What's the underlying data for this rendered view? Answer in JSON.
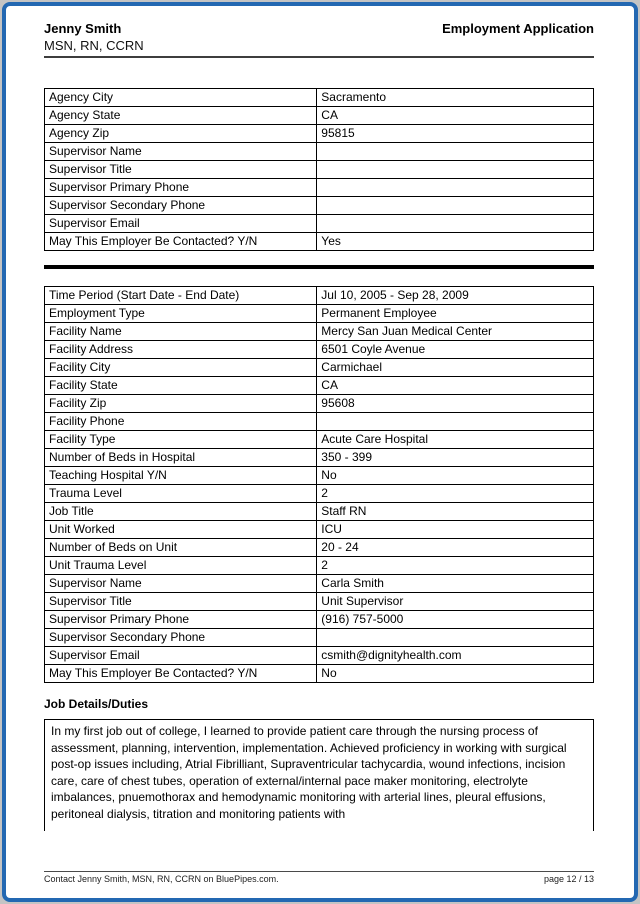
{
  "header": {
    "name": "Jenny Smith",
    "credentials": "MSN, RN, CCRN",
    "document_title": "Employment Application"
  },
  "agency_table": {
    "rows": [
      {
        "label": "Agency City",
        "value": "Sacramento"
      },
      {
        "label": "Agency State",
        "value": "CA"
      },
      {
        "label": "Agency Zip",
        "value": "95815"
      },
      {
        "label": "Supervisor Name",
        "value": ""
      },
      {
        "label": "Supervisor Title",
        "value": ""
      },
      {
        "label": "Supervisor Primary Phone",
        "value": ""
      },
      {
        "label": "Supervisor Secondary Phone",
        "value": ""
      },
      {
        "label": "Supervisor Email",
        "value": ""
      },
      {
        "label": "May This Employer Be Contacted? Y/N",
        "value": "Yes"
      }
    ]
  },
  "employment_table": {
    "rows": [
      {
        "label": "Time Period (Start Date - End Date)",
        "value": "Jul 10, 2005 - Sep 28, 2009"
      },
      {
        "label": "Employment Type",
        "value": "Permanent Employee"
      },
      {
        "label": "Facility Name",
        "value": "Mercy San Juan Medical Center"
      },
      {
        "label": "Facility Address",
        "value": "6501 Coyle Avenue"
      },
      {
        "label": "Facility City",
        "value": "Carmichael"
      },
      {
        "label": "Facility State",
        "value": "CA"
      },
      {
        "label": "Facility Zip",
        "value": "95608"
      },
      {
        "label": "Facility Phone",
        "value": ""
      },
      {
        "label": "Facility Type",
        "value": "Acute Care Hospital"
      },
      {
        "label": "Number of Beds in Hospital",
        "value": "350 - 399"
      },
      {
        "label": "Teaching Hospital Y/N",
        "value": "No"
      },
      {
        "label": "Trauma Level",
        "value": "2"
      },
      {
        "label": "Job Title",
        "value": "Staff RN"
      },
      {
        "label": "Unit Worked",
        "value": "ICU"
      },
      {
        "label": "Number of Beds on Unit",
        "value": "20 - 24"
      },
      {
        "label": "Unit Trauma Level",
        "value": "2"
      },
      {
        "label": "Supervisor Name",
        "value": "Carla Smith"
      },
      {
        "label": "Supervisor Title",
        "value": "Unit Supervisor"
      },
      {
        "label": "Supervisor Primary Phone",
        "value": "(916) 757-5000"
      },
      {
        "label": "Supervisor Secondary Phone",
        "value": ""
      },
      {
        "label": "Supervisor Email",
        "value": "csmith@dignityhealth.com"
      },
      {
        "label": "May This Employer Be Contacted? Y/N",
        "value": "No"
      }
    ]
  },
  "job_details": {
    "heading": "Job Details/Duties",
    "text": "In my first job out of college, I learned to provide patient care through the nursing process of assessment, planning, intervention, implementation. Achieved proficiency in working with surgical post-op issues including, Atrial Fibrilliant, Supraventricular tachycardia, wound infections, incision care, care of chest tubes, operation of external/internal pace maker monitoring, electrolyte imbalances, pnuemothorax and hemodynamic monitoring with arterial lines, pleural effusions, peritoneal dialysis, titration and monitoring patients with"
  },
  "footer": {
    "contact_text": "Contact Jenny Smith, MSN, RN, CCRN on BluePipes.com.",
    "page_indicator": "page 12 / 13"
  },
  "colors": {
    "page_border": "#2368b2",
    "table_border": "#000000",
    "divider": "#000000"
  }
}
